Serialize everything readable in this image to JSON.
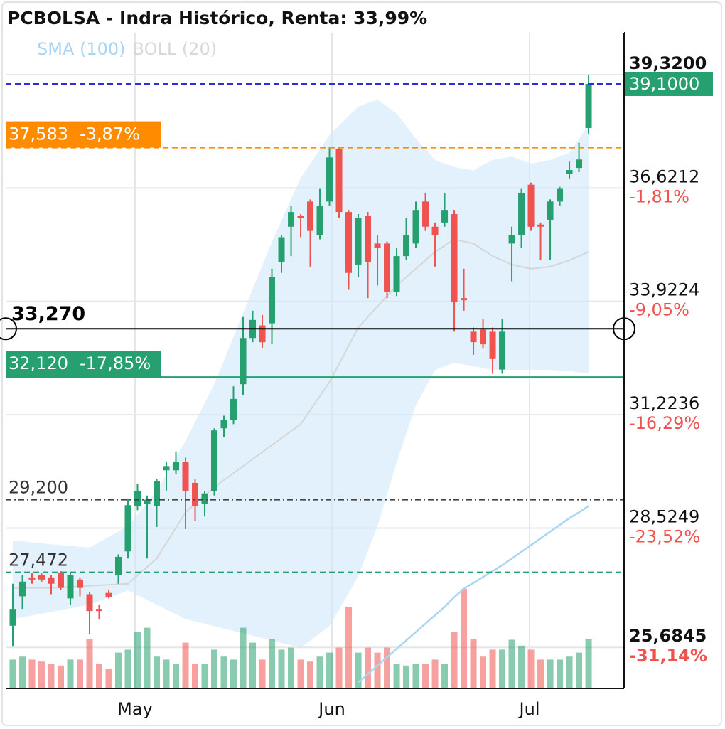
{
  "chart_data": {
    "type": "candlestick",
    "title": "PCBOLSA - Indra Histórico, Renta: 33,99%",
    "legend": [
      {
        "name": "SMA (100)",
        "color": "#a9d5f5"
      },
      {
        "name": "BOLL (20)",
        "color": "#d9d9d9"
      }
    ],
    "x": [
      0,
      1,
      2,
      3,
      4,
      5,
      6,
      7,
      8,
      9,
      10,
      11,
      12,
      13,
      14,
      15,
      16,
      17,
      18,
      19,
      20,
      21,
      22,
      23,
      24,
      25,
      26,
      27,
      28,
      29,
      30,
      31,
      32,
      33,
      34,
      35,
      36,
      37,
      38,
      39,
      40,
      41,
      42,
      43,
      44,
      45,
      46,
      47,
      48,
      49,
      50,
      51,
      52,
      53,
      54,
      55,
      56,
      57,
      58,
      59,
      60
    ],
    "open": [
      26.2,
      26.9,
      27.35,
      27.4,
      27.35,
      27.45,
      26.85,
      27.3,
      26.95,
      26.6,
      26.98,
      27.4,
      27.97,
      29.05,
      29.1,
      29.05,
      29.9,
      29.9,
      30.1,
      29.6,
      29.1,
      29.4,
      30.9,
      31.1,
      31.95,
      33.05,
      33.35,
      33.4,
      34.85,
      35.7,
      35.95,
      36.3,
      35.5,
      36.3,
      37.55,
      36.05,
      34.8,
      35.95,
      35.3,
      35.3,
      34.15,
      35.0,
      35.3,
      36.3,
      35.7,
      35.8,
      36.0,
      34.0,
      33.2,
      33.25,
      33.2,
      32.3,
      35.3,
      35.5,
      36.7,
      35.75,
      35.85,
      36.3,
      36.95,
      37.1,
      38.05
    ],
    "high": [
      27.2,
      27.4,
      27.45,
      27.45,
      27.4,
      27.5,
      27.45,
      27.35,
      27.0,
      26.7,
      27.05,
      27.9,
      29.22,
      29.58,
      29.3,
      29.7,
      30.1,
      30.35,
      30.2,
      29.7,
      29.4,
      30.9,
      31.2,
      31.9,
      33.55,
      33.7,
      33.6,
      34.7,
      35.5,
      36.2,
      36.0,
      36.35,
      36.6,
      37.6,
      37.6,
      36.1,
      36.0,
      36.05,
      35.5,
      35.35,
      35.2,
      35.9,
      36.3,
      36.5,
      35.8,
      36.5,
      36.1,
      34.7,
      33.3,
      33.5,
      33.3,
      33.5,
      35.7,
      36.6,
      36.75,
      35.8,
      36.35,
      36.65,
      37.25,
      37.7,
      39.32
    ],
    "low": [
      25.7,
      26.6,
      27.2,
      27.25,
      26.95,
      27.05,
      26.7,
      26.9,
      26.0,
      26.35,
      26.85,
      27.2,
      27.8,
      28.95,
      27.8,
      28.55,
      29.4,
      29.8,
      28.5,
      28.7,
      28.8,
      29.3,
      30.7,
      31.0,
      31.7,
      32.95,
      32.8,
      32.9,
      34.6,
      35.0,
      35.45,
      34.75,
      35.4,
      36.2,
      35.9,
      34.2,
      34.5,
      34.0,
      34.3,
      34.0,
      34.05,
      34.9,
      35.2,
      35.6,
      34.75,
      35.7,
      33.2,
      33.7,
      32.65,
      32.8,
      32.2,
      32.2,
      34.4,
      35.2,
      35.6,
      34.9,
      34.9,
      36.2,
      36.85,
      37.0,
      37.9
    ],
    "close": [
      26.6,
      27.25,
      27.3,
      27.3,
      27.2,
      27.1,
      27.4,
      27.1,
      26.55,
      26.55,
      26.88,
      27.84,
      29.07,
      29.4,
      29.2,
      29.65,
      30.0,
      30.1,
      29.4,
      29.05,
      29.35,
      30.85,
      31.1,
      31.6,
      33.05,
      33.48,
      32.95,
      34.5,
      35.45,
      36.05,
      35.9,
      35.6,
      36.2,
      37.35,
      36.05,
      34.6,
      35.9,
      34.85,
      35.2,
      34.15,
      35.0,
      35.5,
      36.1,
      35.7,
      35.5,
      36.1,
      33.9,
      33.95,
      32.95,
      32.9,
      32.55,
      33.2,
      35.5,
      36.5,
      35.7,
      35.7,
      36.3,
      36.6,
      37.05,
      37.3,
      39.1
    ],
    "volume": [
      29,
      32,
      29,
      27,
      25,
      23,
      29,
      29,
      50,
      25,
      20,
      36,
      39,
      57,
      61,
      32,
      29,
      25,
      46,
      25,
      25,
      39,
      32,
      29,
      61,
      46,
      29,
      50,
      39,
      41,
      29,
      27,
      32,
      36,
      41,
      82,
      36,
      41,
      36,
      41,
      25,
      23,
      25,
      25,
      29,
      25,
      57,
      100,
      50,
      32,
      39,
      39,
      49,
      43,
      39,
      29,
      29,
      29,
      32,
      36,
      50
    ],
    "volume_lim": [
      0,
      100
    ],
    "up_color": "#26a06e",
    "down_color": "#ef5350",
    "sma": {
      "x": [
        36,
        37,
        38,
        39,
        40,
        41,
        42,
        43,
        44,
        45,
        46,
        47,
        48,
        49,
        50,
        51,
        52,
        53,
        54,
        55,
        56,
        57,
        58,
        59,
        60
      ],
      "values": [
        24.85,
        25.05,
        25.25,
        25.45,
        25.65,
        25.85,
        26.05,
        26.25,
        26.45,
        26.65,
        26.88,
        27.08,
        27.22,
        27.36,
        27.5,
        27.64,
        27.8,
        27.96,
        28.12,
        28.28,
        28.44,
        28.6,
        28.76,
        28.9,
        29.05
      ]
    },
    "boll": {
      "x": [
        0,
        4,
        8,
        12,
        15,
        18,
        21,
        24,
        27,
        30,
        33,
        36,
        38,
        40,
        42,
        44,
        46,
        48,
        50,
        52,
        54,
        56,
        58,
        60
      ],
      "upper": [
        28.23,
        28.14,
        28.06,
        28.57,
        29.41,
        30.6,
        31.95,
        33.65,
        35.34,
        36.86,
        37.88,
        38.56,
        38.73,
        38.39,
        37.8,
        37.29,
        37.12,
        37.04,
        37.29,
        37.37,
        37.2,
        37.29,
        37.46,
        38.13
      ],
      "middle": [
        27.1,
        27.1,
        27.15,
        27.2,
        27.8,
        28.9,
        29.5,
        30.0,
        30.5,
        31.0,
        32.0,
        33.3,
        33.8,
        34.3,
        34.7,
        35.1,
        35.4,
        35.3,
        35.0,
        34.8,
        34.7,
        34.75,
        34.9,
        35.1
      ],
      "lower": [
        26.36,
        26.53,
        26.7,
        27.04,
        26.7,
        26.36,
        26.19,
        26.02,
        25.85,
        25.68,
        26.19,
        27.38,
        28.57,
        30.09,
        31.45,
        32.29,
        32.46,
        32.38,
        32.29,
        32.29,
        32.29,
        32.29,
        32.26,
        32.21
      ]
    },
    "xlim": [
      -0.74,
      63.7
    ],
    "xticks": [
      {
        "value": 12.74,
        "label": "May"
      },
      {
        "value": 33.26,
        "label": "Jun"
      },
      {
        "value": 53.85,
        "label": "Jul"
      }
    ],
    "ylim": [
      24.706,
      40.336
    ],
    "yticks": [
      {
        "value": 39.32,
        "label": "39,3200"
      },
      {
        "value": 36.6212,
        "label": "36,6212",
        "change": {
          "value": -1.81,
          "label": "-1,81%"
        }
      },
      {
        "value": 33.9224,
        "label": "33,9224",
        "change": {
          "value": -9.05,
          "label": "-9,05%"
        }
      },
      {
        "value": 31.2236,
        "label": "31,2236",
        "change": {
          "value": -16.29,
          "label": "-16,29%"
        }
      },
      {
        "value": 28.5249,
        "label": "28,5249",
        "change": {
          "value": -23.52,
          "label": "-23,52%"
        }
      },
      {
        "value": 25.6845,
        "label": "25,6845",
        "change": {
          "value": -31.14,
          "label": "-31,14%"
        }
      }
    ],
    "grid": true,
    "price_lines": [
      {
        "value": 39.1,
        "label": "39,1000",
        "color": "#2f2fd8",
        "style": "dashed",
        "label_position": "axis",
        "box_color": "#26a06e"
      },
      {
        "value": 37.583,
        "label": "37,583",
        "change": {
          "value": -3.87,
          "label": "-3,87%"
        },
        "color": "#ff8c00",
        "style": "dashed",
        "label_position": "left-box",
        "box_color": "#ff8c00"
      },
      {
        "value": 33.27,
        "label": "33,270",
        "color": "#000000",
        "style": "crosshair",
        "label_position": "left"
      },
      {
        "value": 32.12,
        "label": "32,120",
        "change": {
          "value": -17.85,
          "label": "-17,85%"
        },
        "color": "#26a06e",
        "style": "solid",
        "label_position": "left-box",
        "box_color": "#26a06e"
      },
      {
        "value": 29.2,
        "label": "29,200",
        "color": "#444444",
        "style": "dashdot",
        "label_position": "left"
      },
      {
        "value": 27.472,
        "label": "27,472",
        "color": "#26a06e",
        "style": "dashed",
        "label_position": "left"
      }
    ]
  }
}
